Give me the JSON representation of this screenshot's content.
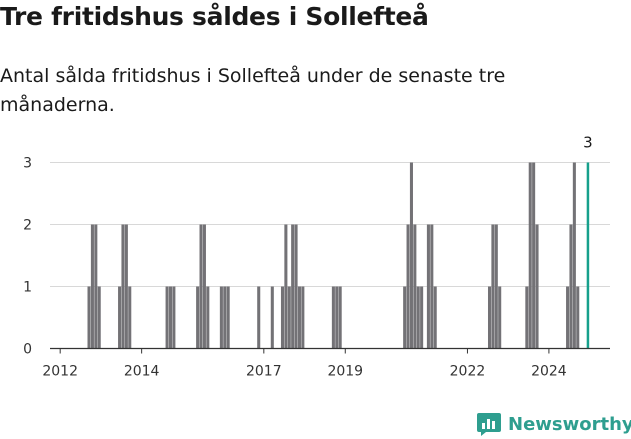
{
  "header": {
    "title": "Tre fritidshus såldes i Sollefteå",
    "subtitle": "Antal sålda fritidshus i Sollefteå under de senaste tre månaderna."
  },
  "brand": {
    "name": "Newsworthy",
    "icon": "chart-bubble-icon",
    "color": "#2e9e8f"
  },
  "colors": {
    "bars": "#737276",
    "highlight": "#17a08c",
    "grid": "#d8d8d8",
    "axis": "#333333"
  },
  "chart_data": {
    "type": "bar",
    "title": "",
    "xlabel": "",
    "ylabel": "",
    "ylim": [
      0,
      3
    ],
    "yticks": [
      0,
      1,
      2,
      3
    ],
    "xticks": [
      "2012",
      "2014",
      "2017",
      "2019",
      "2022",
      "2024"
    ],
    "xlim": [
      "2011-10",
      "2025-07"
    ],
    "grid": true,
    "last_value_label": "3",
    "series": [
      {
        "values": [
          {
            "month": "2012-09",
            "value": 1
          },
          {
            "month": "2012-10",
            "value": 2
          },
          {
            "month": "2012-11",
            "value": 2
          },
          {
            "month": "2012-12",
            "value": 1
          },
          {
            "month": "2013-06",
            "value": 1
          },
          {
            "month": "2013-07",
            "value": 2
          },
          {
            "month": "2013-08",
            "value": 2
          },
          {
            "month": "2013-09",
            "value": 1
          },
          {
            "month": "2014-08",
            "value": 1
          },
          {
            "month": "2014-09",
            "value": 1
          },
          {
            "month": "2014-10",
            "value": 1
          },
          {
            "month": "2015-05",
            "value": 1
          },
          {
            "month": "2015-06",
            "value": 2
          },
          {
            "month": "2015-07",
            "value": 2
          },
          {
            "month": "2015-08",
            "value": 1
          },
          {
            "month": "2015-12",
            "value": 1
          },
          {
            "month": "2016-01",
            "value": 1
          },
          {
            "month": "2016-02",
            "value": 1
          },
          {
            "month": "2016-11",
            "value": 1
          },
          {
            "month": "2017-03",
            "value": 1
          },
          {
            "month": "2017-06",
            "value": 1
          },
          {
            "month": "2017-07",
            "value": 2
          },
          {
            "month": "2017-08",
            "value": 1
          },
          {
            "month": "2017-09",
            "value": 2
          },
          {
            "month": "2017-10",
            "value": 2
          },
          {
            "month": "2017-11",
            "value": 1
          },
          {
            "month": "2017-12",
            "value": 1
          },
          {
            "month": "2018-09",
            "value": 1
          },
          {
            "month": "2018-10",
            "value": 1
          },
          {
            "month": "2018-11",
            "value": 1
          },
          {
            "month": "2020-06",
            "value": 1
          },
          {
            "month": "2020-07",
            "value": 2
          },
          {
            "month": "2020-08",
            "value": 3
          },
          {
            "month": "2020-09",
            "value": 2
          },
          {
            "month": "2020-10",
            "value": 1
          },
          {
            "month": "2020-11",
            "value": 1
          },
          {
            "month": "2021-01",
            "value": 2
          },
          {
            "month": "2021-02",
            "value": 2
          },
          {
            "month": "2021-03",
            "value": 1
          },
          {
            "month": "2022-07",
            "value": 1
          },
          {
            "month": "2022-08",
            "value": 2
          },
          {
            "month": "2022-09",
            "value": 2
          },
          {
            "month": "2022-10",
            "value": 1
          },
          {
            "month": "2023-06",
            "value": 1
          },
          {
            "month": "2023-07",
            "value": 3
          },
          {
            "month": "2023-08",
            "value": 3
          },
          {
            "month": "2023-09",
            "value": 2
          },
          {
            "month": "2024-06",
            "value": 1
          },
          {
            "month": "2024-07",
            "value": 2
          },
          {
            "month": "2024-08",
            "value": 3
          },
          {
            "month": "2024-09",
            "value": 1
          },
          {
            "month": "2024-12",
            "value": 3,
            "highlight": true
          }
        ]
      }
    ]
  }
}
